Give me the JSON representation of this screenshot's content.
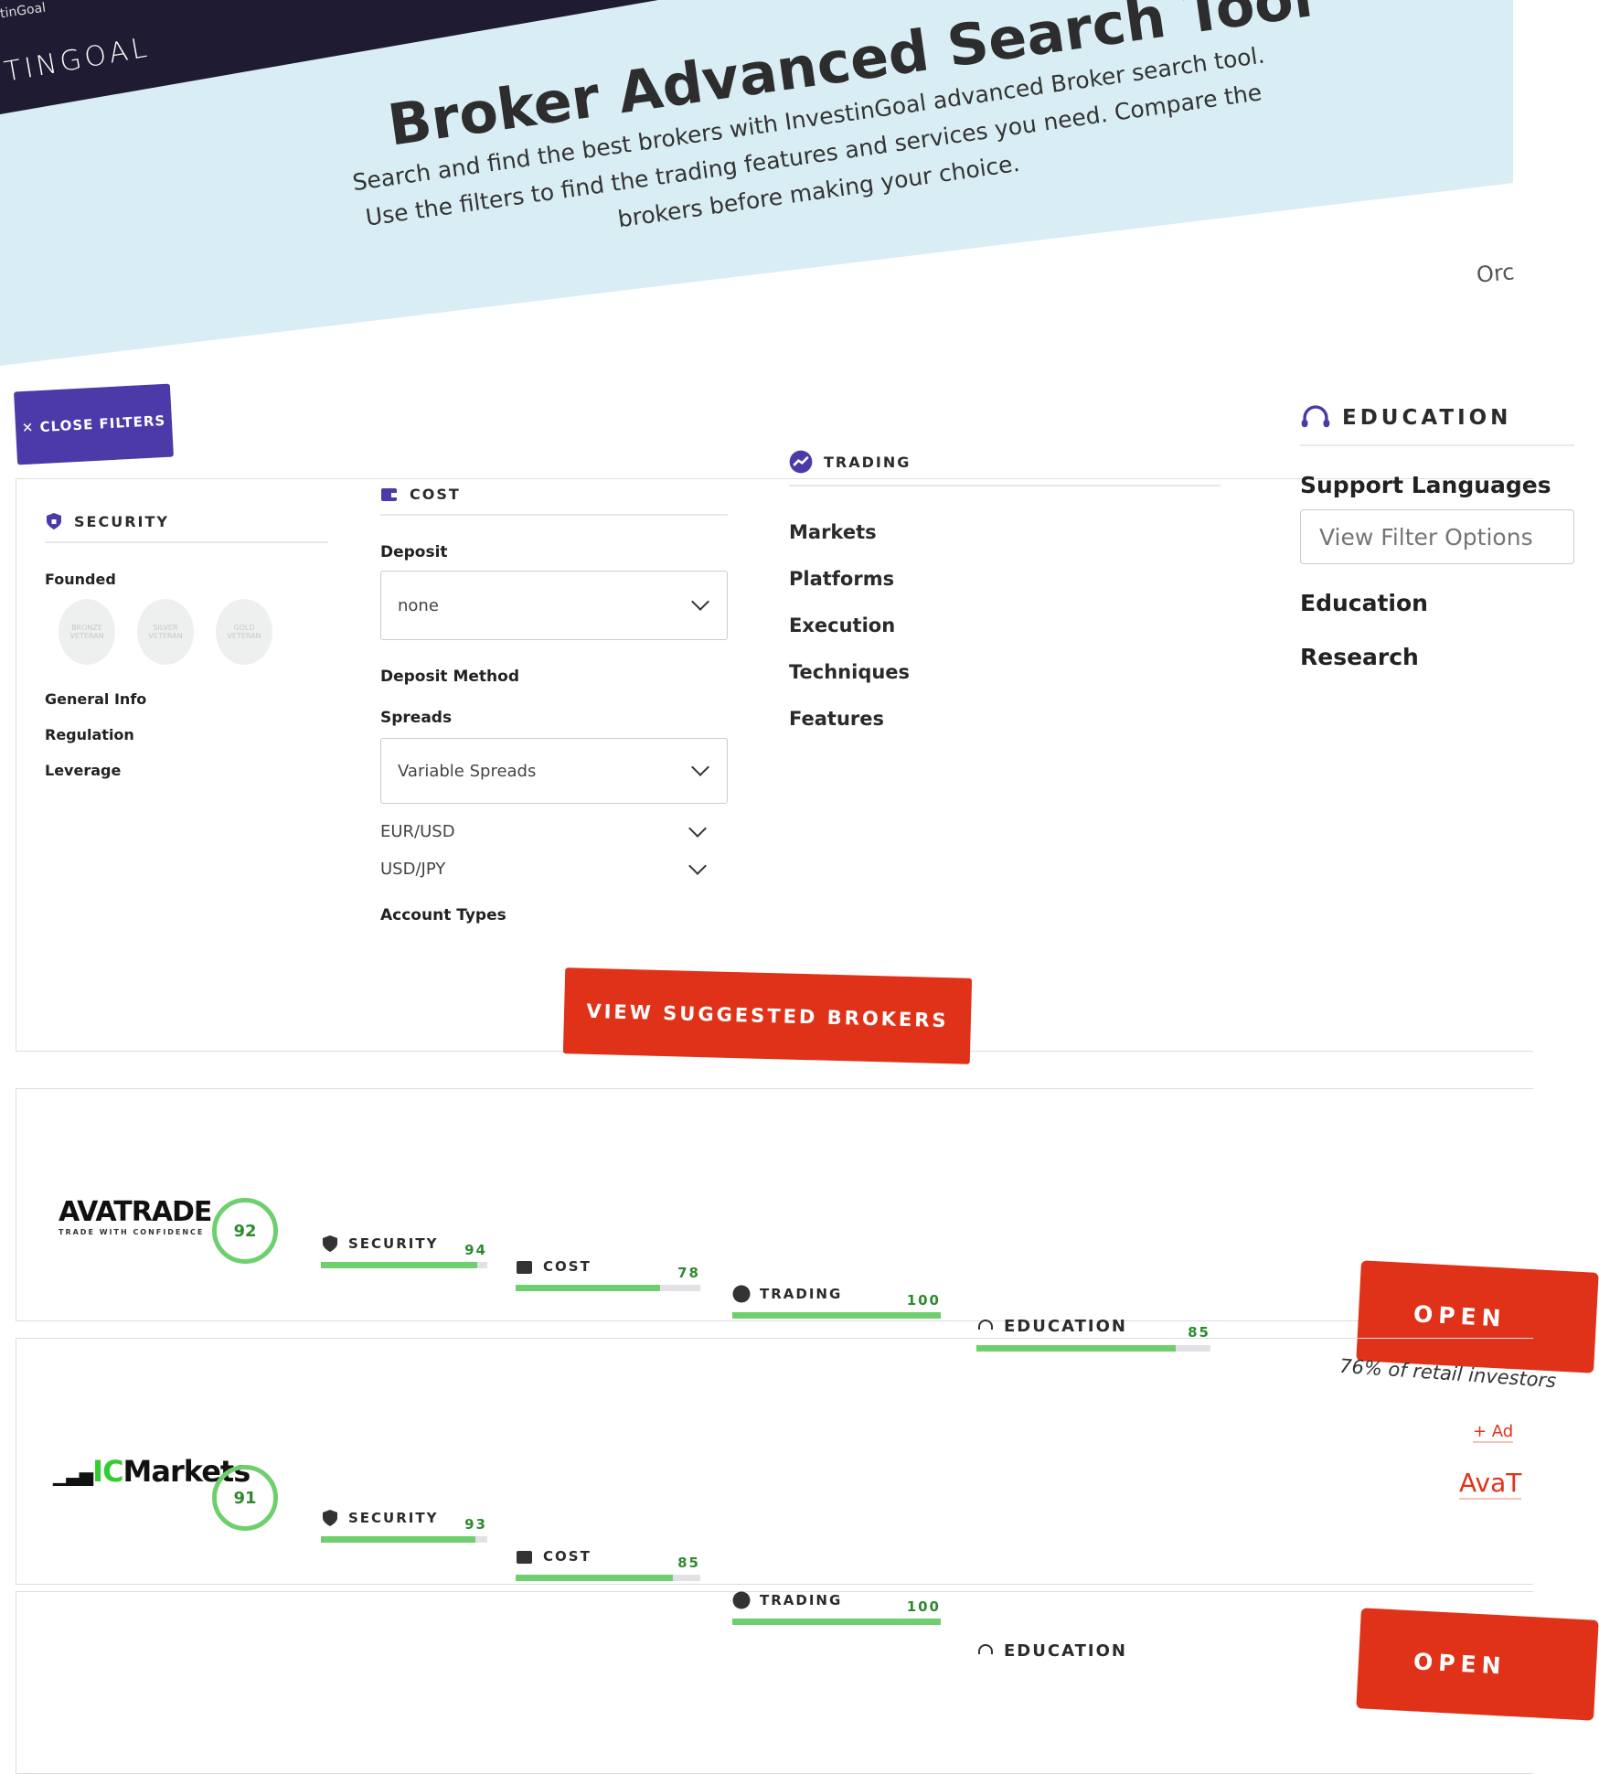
{
  "header": {
    "site_small": "tinGoal",
    "brand": "TINGOAL",
    "title": "Broker Advanced Search Tool",
    "subtitle": "Search and find the best brokers with InvestinGoal advanced Broker search tool. Use the filters to find the trading features and services you need. Compare the brokers before making your choice.",
    "order_label": "Orc"
  },
  "filters": {
    "close_label": "CLOSE FILTERS",
    "security": {
      "title": "SECURITY",
      "founded": "Founded",
      "badges": [
        "BRONZE VETERAN",
        "SILVER VETERAN",
        "GOLD VETERAN"
      ],
      "items": [
        "General Info",
        "Regulation",
        "Leverage"
      ]
    },
    "cost": {
      "title": "COST",
      "deposit_label": "Deposit",
      "deposit_value": "none",
      "deposit_method": "Deposit Method",
      "spreads_label": "Spreads",
      "spreads_value": "Variable Spreads",
      "pairs": [
        "EUR/USD",
        "USD/JPY"
      ],
      "account_types": "Account Types"
    },
    "trading": {
      "title": "TRADING",
      "items": [
        "Markets",
        "Platforms",
        "Execution",
        "Techniques",
        "Features"
      ]
    },
    "education": {
      "title": "EDUCATION",
      "support_label": "Support Languages",
      "support_placeholder": "View Filter Options",
      "items": [
        "Education",
        "Research"
      ]
    },
    "view_button": "VIEW SUGGESTED BROKERS"
  },
  "brokers": [
    {
      "name": "AVATRADE",
      "tagline": "TRADE WITH CONFIDENCE",
      "score": "92",
      "metrics": [
        {
          "label": "SECURITY",
          "value": "94"
        },
        {
          "label": "COST",
          "value": "78"
        },
        {
          "label": "TRADING",
          "value": "100"
        },
        {
          "label": "EDUCATION",
          "value": "85"
        }
      ],
      "open_label": "OPEN",
      "warning": "76% of retail investors",
      "add_link": "+ Ad",
      "review_link": "AvaT"
    },
    {
      "name_a": "IC",
      "name_b": "Markets",
      "score": "91",
      "metrics": [
        {
          "label": "SECURITY",
          "value": "93"
        },
        {
          "label": "COST",
          "value": "85"
        },
        {
          "label": "TRADING",
          "value": "100"
        },
        {
          "label": "EDUCATION"
        }
      ],
      "open_label": "OPEN"
    }
  ],
  "colors": {
    "accent": "#4b3aa8",
    "cta": "#e03219",
    "score": "#6fcf6f",
    "hero": "#d9edf4",
    "topbar": "#1f1b33"
  }
}
